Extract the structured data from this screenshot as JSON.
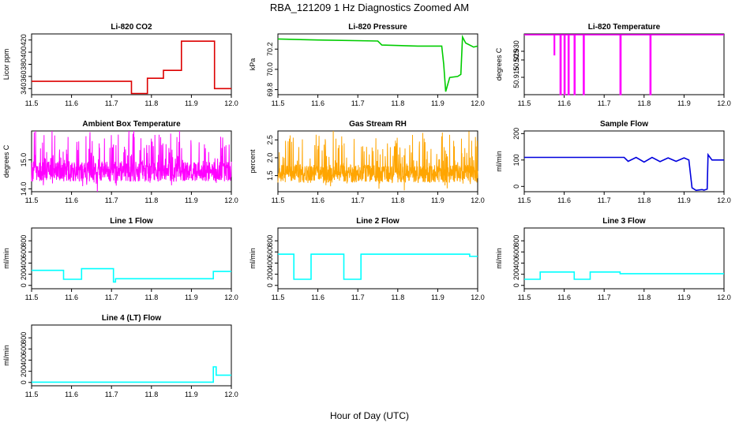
{
  "figure": {
    "title": "RBA_121209  1 Hz Diagnostics Zoomed AM",
    "xlabel": "Hour of Day (UTC)"
  },
  "chart_data": [
    {
      "id": "co2",
      "type": "line",
      "title": "Li-820 CO2",
      "ylabel": "Licor ppm",
      "color": "#dd0000",
      "xlim": [
        11.5,
        12.0
      ],
      "ylim": [
        330,
        430
      ],
      "xticks": [
        "11.5",
        "11.6",
        "11.7",
        "11.8",
        "11.9",
        "12.0"
      ],
      "yticks": [
        "340",
        "360",
        "380",
        "400",
        "420"
      ],
      "x": [
        11.5,
        11.75,
        11.75,
        11.79,
        11.79,
        11.83,
        11.83,
        11.875,
        11.875,
        11.958,
        11.958,
        12.0
      ],
      "y": [
        352,
        352,
        332,
        332,
        357,
        357,
        370,
        370,
        418,
        418,
        340,
        340
      ]
    },
    {
      "id": "pressure",
      "type": "line",
      "title": "Li-820 Pressure",
      "ylabel": "kPa",
      "color": "#00cc00",
      "xlim": [
        11.5,
        12.0
      ],
      "ylim": [
        69.75,
        70.35
      ],
      "xticks": [
        "11.5",
        "11.6",
        "11.7",
        "11.8",
        "11.9",
        "12.0"
      ],
      "yticks": [
        "69.8",
        "70.0",
        "70.2"
      ],
      "x": [
        11.5,
        11.6,
        11.75,
        11.76,
        11.85,
        11.91,
        11.915,
        11.92,
        11.93,
        11.95,
        11.958,
        11.962,
        11.97,
        11.99,
        12.0
      ],
      "y": [
        70.3,
        70.29,
        70.28,
        70.24,
        70.23,
        70.23,
        70.05,
        69.78,
        69.92,
        69.93,
        69.95,
        70.32,
        70.26,
        70.22,
        70.23
      ]
    },
    {
      "id": "temperature",
      "type": "line",
      "title": "Li-820 Temperature",
      "ylabel": "degrees C",
      "color": "#ff00ff",
      "xlim": [
        11.5,
        12.0
      ],
      "ylim": [
        50.905,
        50.94
      ],
      "xticks": [
        "11.5",
        "11.6",
        "11.7",
        "11.8",
        "11.9",
        "12.0"
      ],
      "yticks": [
        "50.915",
        "50.925",
        "50.930"
      ],
      "x": [
        11.5,
        11.575,
        11.575,
        11.576,
        11.576,
        11.59,
        11.59,
        11.592,
        11.592,
        11.6,
        11.6,
        11.602,
        11.602,
        11.61,
        11.61,
        11.612,
        11.612,
        11.625,
        11.625,
        11.627,
        11.627,
        11.648,
        11.648,
        11.65,
        11.65,
        11.74,
        11.74,
        11.742,
        11.742,
        11.815,
        11.815,
        11.817,
        11.817,
        12.0
      ],
      "y": [
        50.9395,
        50.9395,
        50.928,
        50.928,
        50.9395,
        50.9395,
        50.905,
        50.905,
        50.9395,
        50.9395,
        50.905,
        50.905,
        50.9395,
        50.9395,
        50.905,
        50.905,
        50.9395,
        50.9395,
        50.905,
        50.905,
        50.9395,
        50.9395,
        50.905,
        50.905,
        50.9395,
        50.9395,
        50.905,
        50.905,
        50.9395,
        50.9395,
        50.905,
        50.905,
        50.9395,
        50.9395
      ]
    },
    {
      "id": "ambient",
      "type": "line",
      "title": "Ambient Box Temperature",
      "ylabel": "degrees C",
      "color": "#ff00ff",
      "xlim": [
        11.5,
        12.0
      ],
      "ylim": [
        13.9,
        16.0
      ],
      "xticks": [
        "11.5",
        "11.6",
        "11.7",
        "11.8",
        "11.9",
        "12.0"
      ],
      "yticks": [
        "14.0",
        "15.0"
      ],
      "noise": {
        "base": 14.6,
        "spread": 0.35,
        "spikes": 1.3,
        "n": 900
      }
    },
    {
      "id": "rh",
      "type": "line",
      "title": "Gas Stream RH",
      "ylabel": "percent",
      "color": "#ffa500",
      "xlim": [
        11.5,
        12.0
      ],
      "ylim": [
        1.05,
        2.75
      ],
      "xticks": [
        "11.5",
        "11.6",
        "11.7",
        "11.8",
        "11.9",
        "12.0"
      ],
      "yticks": [
        "1.5",
        "2.0",
        "2.5"
      ],
      "noise": {
        "base": 1.55,
        "spread": 0.25,
        "spikes": 1.05,
        "n": 900
      }
    },
    {
      "id": "sampleflow",
      "type": "line",
      "title": "Sample Flow",
      "ylabel": "ml/min",
      "color": "#0000dd",
      "xlim": [
        11.5,
        12.0
      ],
      "ylim": [
        -20,
        210
      ],
      "xticks": [
        "11.5",
        "11.6",
        "11.7",
        "11.8",
        "11.9",
        "12.0"
      ],
      "yticks": [
        "0",
        "100",
        "200"
      ],
      "x": [
        11.5,
        11.75,
        11.76,
        11.78,
        11.8,
        11.82,
        11.84,
        11.86,
        11.88,
        11.9,
        11.912,
        11.92,
        11.93,
        11.945,
        11.95,
        11.958,
        11.96,
        11.97,
        12.0
      ],
      "y": [
        110,
        110,
        95,
        110,
        92,
        110,
        94,
        108,
        95,
        108,
        100,
        -5,
        -15,
        -12,
        -14,
        -10,
        120,
        100,
        100
      ]
    },
    {
      "id": "line1",
      "type": "line",
      "title": "Line 1 Flow",
      "ylabel": "ml/min",
      "color": "#00ffff",
      "xlim": [
        11.5,
        12.0
      ],
      "ylim": [
        -60,
        1030
      ],
      "xticks": [
        "11.5",
        "11.6",
        "11.7",
        "11.8",
        "11.9",
        "12.0"
      ],
      "yticks": [
        "0",
        "200",
        "400",
        "600",
        "800"
      ],
      "x": [
        11.5,
        11.58,
        11.58,
        11.625,
        11.625,
        11.705,
        11.705,
        11.71,
        11.71,
        11.955,
        11.955,
        12.0
      ],
      "y": [
        270,
        270,
        110,
        110,
        300,
        300,
        60,
        60,
        120,
        120,
        250,
        250
      ]
    },
    {
      "id": "line2",
      "type": "line",
      "title": "Line 2 Flow",
      "ylabel": "ml/min",
      "color": "#00ffff",
      "xlim": [
        11.5,
        12.0
      ],
      "ylim": [
        -60,
        1030
      ],
      "xticks": [
        "11.5",
        "11.6",
        "11.7",
        "11.8",
        "11.9",
        "12.0"
      ],
      "yticks": [
        "0",
        "200",
        "400",
        "600",
        "800"
      ],
      "x": [
        11.5,
        11.54,
        11.54,
        11.583,
        11.583,
        11.665,
        11.665,
        11.708,
        11.708,
        11.98,
        11.98,
        12.0
      ],
      "y": [
        560,
        560,
        110,
        110,
        560,
        560,
        110,
        110,
        560,
        560,
        520,
        520
      ]
    },
    {
      "id": "line3",
      "type": "line",
      "title": "Line 3 Flow",
      "ylabel": "ml/min",
      "color": "#00ffff",
      "xlim": [
        11.5,
        12.0
      ],
      "ylim": [
        -60,
        1030
      ],
      "xticks": [
        "11.5",
        "11.6",
        "11.7",
        "11.8",
        "11.9",
        "12.0"
      ],
      "yticks": [
        "0",
        "200",
        "400",
        "600",
        "800"
      ],
      "x": [
        11.5,
        11.54,
        11.54,
        11.625,
        11.625,
        11.665,
        11.665,
        11.74,
        11.74,
        12.0
      ],
      "y": [
        110,
        110,
        240,
        240,
        110,
        110,
        240,
        240,
        210,
        210
      ]
    },
    {
      "id": "line4",
      "type": "line",
      "title": "Line 4 (LT) Flow",
      "ylabel": "ml/min",
      "color": "#00ffff",
      "xlim": [
        11.5,
        12.0
      ],
      "ylim": [
        -60,
        1030
      ],
      "xticks": [
        "11.5",
        "11.6",
        "11.7",
        "11.8",
        "11.9",
        "12.0"
      ],
      "yticks": [
        "0",
        "200",
        "400",
        "600",
        "800"
      ],
      "x": [
        11.5,
        11.955,
        11.955,
        11.962,
        11.962,
        12.0
      ],
      "y": [
        5,
        5,
        280,
        280,
        130,
        130
      ]
    }
  ]
}
